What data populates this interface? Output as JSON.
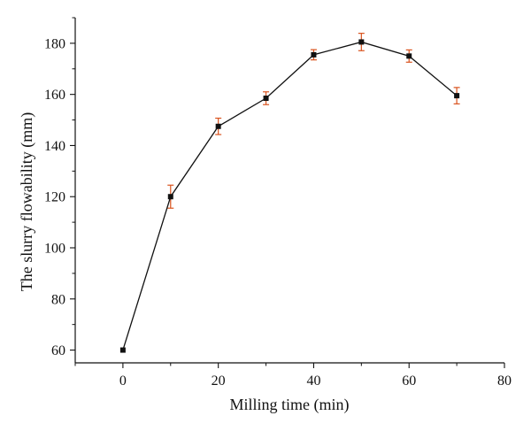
{
  "chart_data": {
    "type": "line",
    "title": "",
    "xlabel": "Milling time (min)",
    "ylabel": "The slurry flowability (mm)",
    "xlim": [
      -10,
      80
    ],
    "ylim": [
      55,
      190
    ],
    "x_ticks": [
      0,
      20,
      40,
      60,
      80
    ],
    "y_ticks": [
      60,
      80,
      100,
      120,
      140,
      160,
      180
    ],
    "x_tick_labels": [
      "0",
      "20",
      "40",
      "60",
      "80"
    ],
    "y_tick_labels": [
      "60",
      "80",
      "100",
      "120",
      "140",
      "160",
      "180"
    ],
    "grid": false,
    "legend": false,
    "colors": {
      "line": "#111111",
      "marker": "#111111",
      "error_bar": "#d9531e",
      "axis": "#111111"
    },
    "series": [
      {
        "x": [
          0,
          10,
          20,
          30,
          40,
          50,
          60,
          70
        ],
        "y": [
          60,
          120,
          147.5,
          158.5,
          175.5,
          180.5,
          175,
          159.5
        ],
        "error": [
          0,
          4.5,
          3.2,
          2.5,
          2,
          3.4,
          2.4,
          3.2
        ]
      }
    ]
  }
}
